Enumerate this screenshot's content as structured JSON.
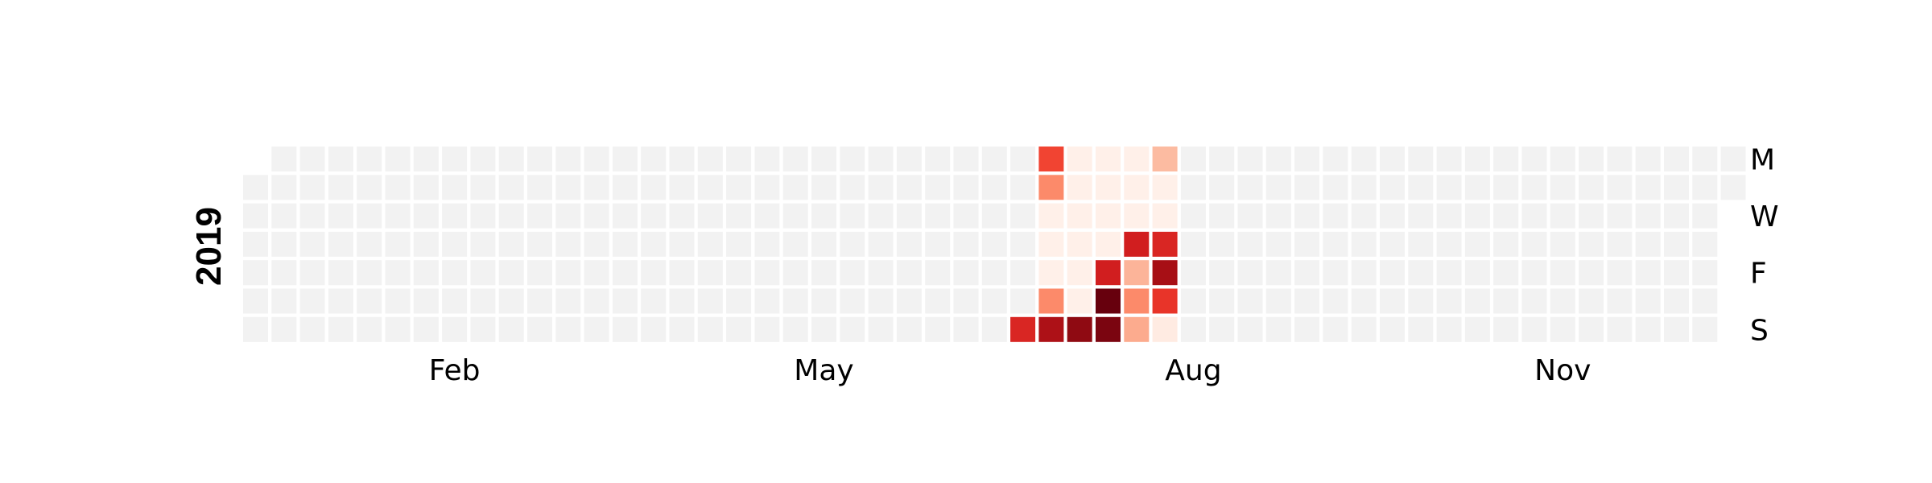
{
  "chart_data": {
    "type": "heatmap",
    "title": "",
    "year": "2019",
    "month_labels": [
      {
        "label": "Feb",
        "week": 7
      },
      {
        "label": "May",
        "week": 20
      },
      {
        "label": "Aug",
        "week": 33
      },
      {
        "label": "Nov",
        "week": 46
      }
    ],
    "day_labels": [
      {
        "label": "M",
        "row": 0
      },
      {
        "label": "W",
        "row": 2
      },
      {
        "label": "F",
        "row": 4
      },
      {
        "label": "S",
        "row": 6
      }
    ],
    "colormap": "Reds",
    "empty_color": "#f2f2f2",
    "value_range": [
      0,
      10
    ],
    "start_weekday_row": 1,
    "days_in_year": 365,
    "active_range": {
      "start_day": 194,
      "end_day": 227,
      "base_value": 0.3
    },
    "values": [
      {
        "day": 194,
        "value": 7
      },
      {
        "day": 195,
        "value": 6
      },
      {
        "day": 196,
        "value": 4
      },
      {
        "day": 200,
        "value": 4
      },
      {
        "day": 201,
        "value": 8.5
      },
      {
        "day": 208,
        "value": 9.2
      },
      {
        "day": 215,
        "value": 9.6
      },
      {
        "day": 213,
        "value": 7.3
      },
      {
        "day": 214,
        "value": 10
      },
      {
        "day": 219,
        "value": 7.3
      },
      {
        "day": 222,
        "value": 3
      },
      {
        "day": 220,
        "value": 2.7
      },
      {
        "day": 221,
        "value": 4
      },
      {
        "day": 223,
        "value": 2.5
      },
      {
        "day": 228,
        "value": 6.5
      },
      {
        "day": 229,
        "value": 0.6
      },
      {
        "day": 227,
        "value": 8.7
      },
      {
        "day": 226,
        "value": 7
      }
    ]
  }
}
